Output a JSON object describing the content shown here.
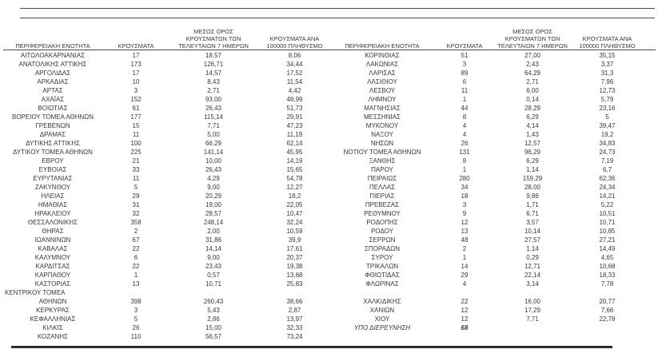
{
  "colors": {
    "background": "#ffffff",
    "text": "#383838",
    "rule": "#4a4a4a",
    "rule_heavy": "#2f2f2f"
  },
  "table": {
    "headers": {
      "region": "ΠΕΡΙΦΕΡΕΙΑΚΗ ΕΝΟΤΗΤΑ",
      "cases": "ΚΡΟΥΣΜΑΤΑ",
      "avg7": "ΜΕΣΟΣ ΟΡΟΣ\nΚΡΟΥΣΜΑΤΩΝ ΤΩΝ\nΤΕΛΕΥΤΑΙΩΝ 7 ΗΜΕΡΩΝ",
      "per100k": "ΚΡΟΥΣΜΑΤΑ ΑΝΑ\n100000 ΠΛΗΘΥΣΜΟ"
    },
    "left_rows": [
      {
        "name": "ΑΙΤΩΛΟΑΚΑΡΝΑΝΙΑΣ",
        "cases": "17",
        "avg7": "18,57",
        "per100k": "8,06"
      },
      {
        "name": "ΑΝΑΤΟΛΙΚΗΣ ΑΤΤΙΚΗΣ",
        "cases": "173",
        "avg7": "126,71",
        "per100k": "34,44"
      },
      {
        "name": "ΑΡΓΟΛΙΔΑΣ",
        "cases": "17",
        "avg7": "14,57",
        "per100k": "17,52"
      },
      {
        "name": "ΑΡΚΑΔΙΑΣ",
        "cases": "10",
        "avg7": "8,43",
        "per100k": "11,54"
      },
      {
        "name": "ΑΡΤΑΣ",
        "cases": "3",
        "avg7": "2,71",
        "per100k": "4,42"
      },
      {
        "name": "ΑΧΑΪΑΣ",
        "cases": "152",
        "avg7": "93,00",
        "per100k": "48,99"
      },
      {
        "name": "ΒΟΙΩΤΙΑΣ",
        "cases": "61",
        "avg7": "26,43",
        "per100k": "51,73"
      },
      {
        "name": "ΒΟΡΕΙΟΥ ΤΟΜΕΑ ΑΘΗΝΩΝ",
        "cases": "177",
        "avg7": "115,14",
        "per100k": "29,91"
      },
      {
        "name": "ΓΡΕΒΕΝΩΝ",
        "cases": "15",
        "avg7": "7,71",
        "per100k": "47,23"
      },
      {
        "name": "ΔΡΑΜΑΣ",
        "cases": "11",
        "avg7": "5,00",
        "per100k": "11,19"
      },
      {
        "name": "ΔΥΤΙΚΗΣ ΑΤΤΙΚΗΣ",
        "cases": "100",
        "avg7": "66,29",
        "per100k": "62,14"
      },
      {
        "name": "ΔΥΤΙΚΟΥ ΤΟΜΕΑ ΑΘΗΝΩΝ",
        "cases": "225",
        "avg7": "141,14",
        "per100k": "45,95"
      },
      {
        "name": "ΕΒΡΟΥ",
        "cases": "21",
        "avg7": "10,00",
        "per100k": "14,19"
      },
      {
        "name": "ΕΥΒΟΙΑΣ",
        "cases": "33",
        "avg7": "26,43",
        "per100k": "15,65"
      },
      {
        "name": "ΕΥΡΥΤΑΝΙΑΣ",
        "cases": "11",
        "avg7": "4,29",
        "per100k": "54,78"
      },
      {
        "name": "ΖΑΚΥΝΘΟΥ",
        "cases": "5",
        "avg7": "9,00",
        "per100k": "12,27"
      },
      {
        "name": "ΗΛΕΙΑΣ",
        "cases": "29",
        "avg7": "20,29",
        "per100k": "18,2"
      },
      {
        "name": "ΗΜΑΘΙΑΣ",
        "cases": "31",
        "avg7": "19,00",
        "per100k": "22,05"
      },
      {
        "name": "ΗΡΑΚΛΕΙΟΥ",
        "cases": "32",
        "avg7": "28,57",
        "per100k": "10,47"
      },
      {
        "name": "ΘΕΣΣΑΛΟΝΙΚΗΣ",
        "cases": "358",
        "avg7": "248,14",
        "per100k": "32,24"
      },
      {
        "name": "ΘΗΡΑΣ",
        "cases": "2",
        "avg7": "2,00",
        "per100k": "10,59"
      },
      {
        "name": "ΙΩΑΝΝΙΝΩΝ",
        "cases": "67",
        "avg7": "31,86",
        "per100k": "39,9"
      },
      {
        "name": "ΚΑΒΑΛΑΣ",
        "cases": "22",
        "avg7": "14,14",
        "per100k": "17,61"
      },
      {
        "name": "ΚΑΛΥΜΝΟΥ",
        "cases": "6",
        "avg7": "9,00",
        "per100k": "20,37"
      },
      {
        "name": "ΚΑΡΔΙΤΣΑΣ",
        "cases": "22",
        "avg7": "23,43",
        "per100k": "19,38"
      },
      {
        "name": "ΚΑΡΠΑΘΟΥ",
        "cases": "1",
        "avg7": "0,57",
        "per100k": "13,68"
      },
      {
        "name": "ΚΑΣΤΟΡΙΑΣ",
        "cases": "13",
        "avg7": "10,71",
        "per100k": "25,83"
      },
      {
        "name": "ΚΕΝΤΡΙΚΟΥ ΤΟΜΕΑ",
        "cases": "",
        "avg7": "",
        "per100k": "",
        "align": "left"
      },
      {
        "name": "ΑΘΗΝΩΝ",
        "cases": "398",
        "avg7": "260,43",
        "per100k": "38,66"
      },
      {
        "name": "ΚΕΡΚΥΡΑΣ",
        "cases": "3",
        "avg7": "5,43",
        "per100k": "2,87"
      },
      {
        "name": "ΚΕΦΑΛΛΗΝΙΑΣ",
        "cases": "5",
        "avg7": "2,86",
        "per100k": "13,97"
      },
      {
        "name": "ΚΙΛΚΙΣ",
        "cases": "26",
        "avg7": "15,00",
        "per100k": "32,33"
      },
      {
        "name": "ΚΟΖΑΝΗΣ",
        "cases": "110",
        "avg7": "56,57",
        "per100k": "73,24"
      }
    ],
    "right_rows": [
      {
        "name": "ΚΟΡΙΝΘΙΑΣ",
        "cases": "51",
        "avg7": "27,00",
        "per100k": "35,15"
      },
      {
        "name": "ΛΑΚΩΝΙΑΣ",
        "cases": "3",
        "avg7": "2,43",
        "per100k": "3,37"
      },
      {
        "name": "ΛΑΡΙΣΑΣ",
        "cases": "89",
        "avg7": "64,29",
        "per100k": "31,3"
      },
      {
        "name": "ΛΑΣΙΘΙΟΥ",
        "cases": "6",
        "avg7": "2,71",
        "per100k": "7,96"
      },
      {
        "name": "ΛΕΣΒΟΥ",
        "cases": "11",
        "avg7": "6,00",
        "per100k": "12,73"
      },
      {
        "name": "ΛΗΜΝΟΥ",
        "cases": "1",
        "avg7": "0,14",
        "per100k": "5,79"
      },
      {
        "name": "ΜΑΓΝΗΣΙΑΣ",
        "cases": "44",
        "avg7": "28,29",
        "per100k": "23,16"
      },
      {
        "name": "ΜΕΣΣΗΝΙΑΣ",
        "cases": "8",
        "avg7": "6,29",
        "per100k": "5"
      },
      {
        "name": "ΜΥΚΟΝΟΥ",
        "cases": "4",
        "avg7": "4,14",
        "per100k": "39,47"
      },
      {
        "name": "ΝΑΞΟΥ",
        "cases": "4",
        "avg7": "1,43",
        "per100k": "19,2"
      },
      {
        "name": "ΝΗΣΩΝ",
        "cases": "26",
        "avg7": "12,57",
        "per100k": "34,83"
      },
      {
        "name": "ΝΟΤΙΟΥ ΤΟΜΕΑ ΑΘΗΝΩΝ",
        "cases": "131",
        "avg7": "96,29",
        "per100k": "24,73"
      },
      {
        "name": "ΞΑΝΘΗΣ",
        "cases": "8",
        "avg7": "6,29",
        "per100k": "7,19"
      },
      {
        "name": "ΠΑΡΟΥ",
        "cases": "1",
        "avg7": "1,14",
        "per100k": "6,7"
      },
      {
        "name": "ΠΕΙΡΑΙΩΣ",
        "cases": "280",
        "avg7": "159,29",
        "per100k": "62,36"
      },
      {
        "name": "ΠΕΛΛΑΣ",
        "cases": "34",
        "avg7": "28,00",
        "per100k": "24,34"
      },
      {
        "name": "ΠΙΕΡΙΑΣ",
        "cases": "18",
        "avg7": "9,86",
        "per100k": "14,21"
      },
      {
        "name": "ΠΡΕΒΕΖΑΣ",
        "cases": "3",
        "avg7": "1,71",
        "per100k": "5,22"
      },
      {
        "name": "ΡΕΘΥΜΝΟΥ",
        "cases": "9",
        "avg7": "6,71",
        "per100k": "10,51"
      },
      {
        "name": "ΡΟΔΟΠΗΣ",
        "cases": "12",
        "avg7": "3,57",
        "per100k": "10,71"
      },
      {
        "name": "ΡΟΔΟΥ",
        "cases": "13",
        "avg7": "10,14",
        "per100k": "10,85"
      },
      {
        "name": "ΣΕΡΡΩΝ",
        "cases": "48",
        "avg7": "27,57",
        "per100k": "27,21"
      },
      {
        "name": "ΣΠΟΡΑΔΩΝ",
        "cases": "2",
        "avg7": "1,14",
        "per100k": "14,49"
      },
      {
        "name": "ΣΥΡΟΥ",
        "cases": "1",
        "avg7": "0,29",
        "per100k": "4,65"
      },
      {
        "name": "ΤΡΙΚΑΛΩΝ",
        "cases": "14",
        "avg7": "12,71",
        "per100k": "10,68"
      },
      {
        "name": "ΦΘΙΩΤΙΔΑΣ",
        "cases": "29",
        "avg7": "22,14",
        "per100k": "18,33"
      },
      {
        "name": "ΦΛΩΡΙΝΑΣ",
        "cases": "4",
        "avg7": "3,14",
        "per100k": "7,78"
      },
      {
        "name": "",
        "cases": "",
        "avg7": "",
        "per100k": ""
      },
      {
        "name": "ΧΑΛΚΙΔΙΚΗΣ",
        "cases": "22",
        "avg7": "16,00",
        "per100k": "20,77"
      },
      {
        "name": "ΧΑΝΙΩΝ",
        "cases": "12",
        "avg7": "17,29",
        "per100k": "7,66"
      },
      {
        "name": "ΧΙΟΥ",
        "cases": "12",
        "avg7": "7,71",
        "per100k": "22,78"
      },
      {
        "name": "ΥΠΟ ΔΙΕΡΕΥΝΗΣΗ",
        "cases": "68",
        "avg7": "",
        "per100k": "",
        "italic": true
      },
      {
        "name": "",
        "cases": "",
        "avg7": "",
        "per100k": ""
      }
    ]
  }
}
